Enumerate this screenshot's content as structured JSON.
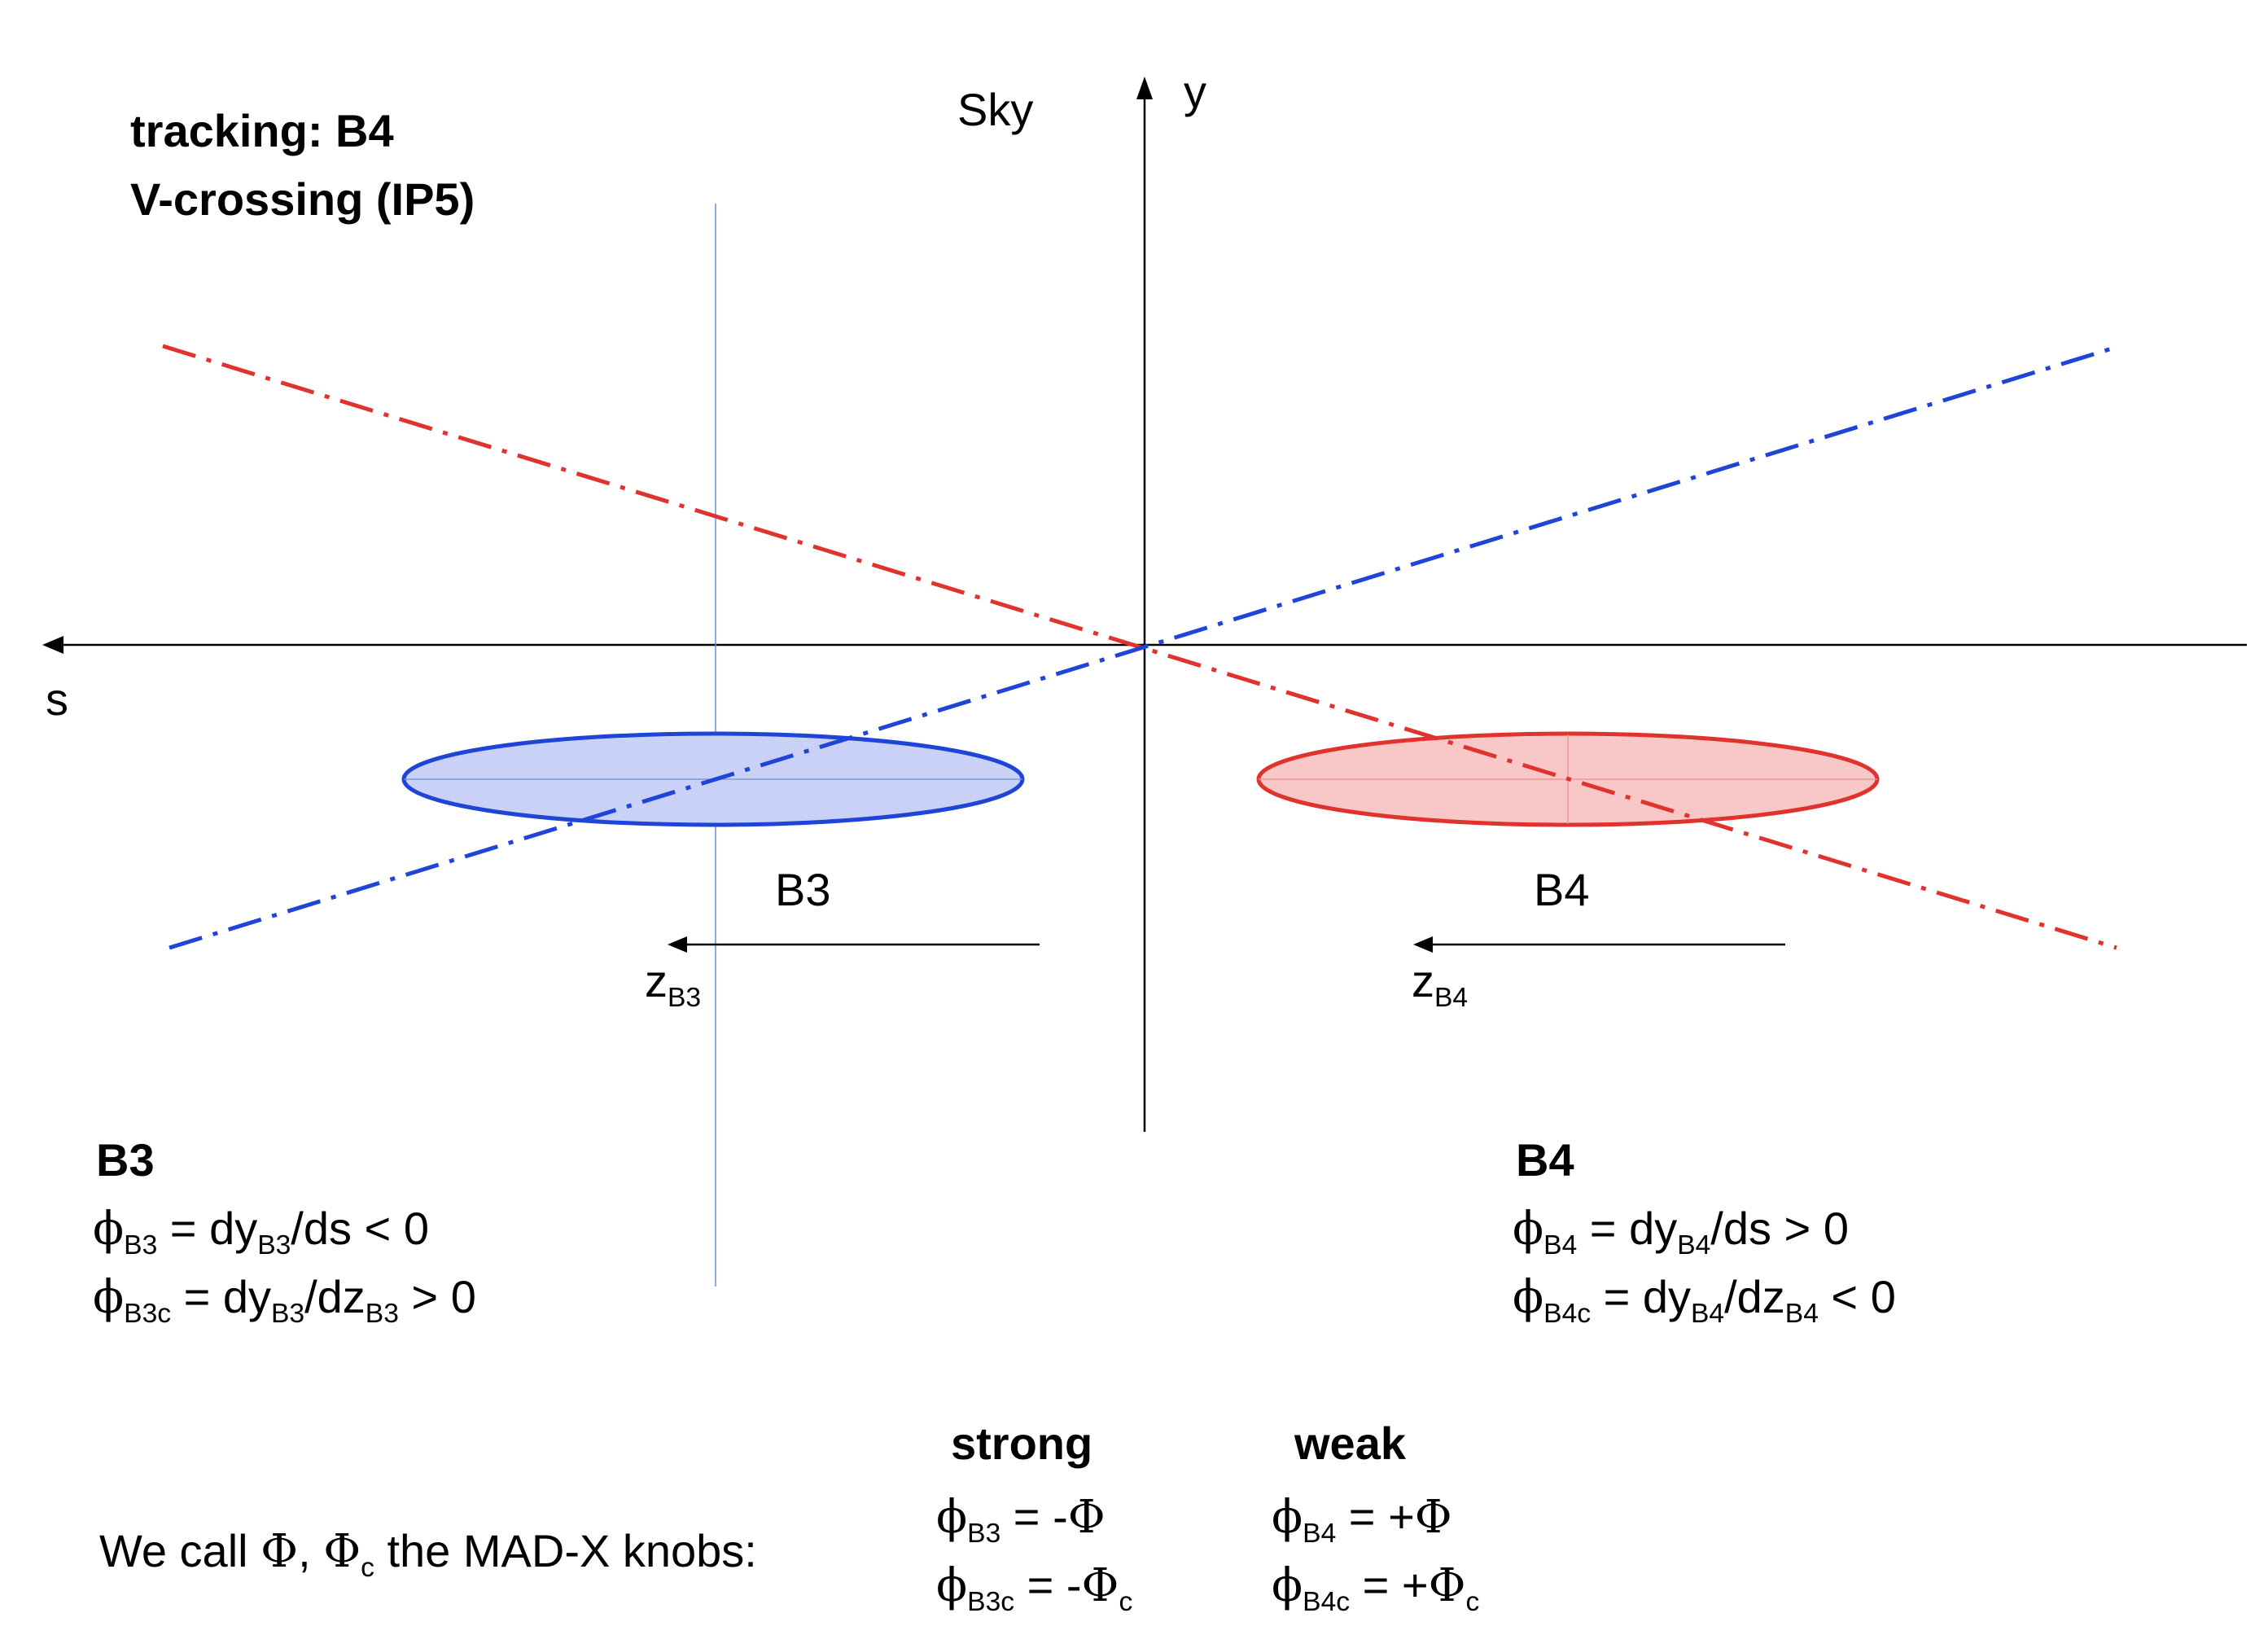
{
  "header": {
    "line1": "tracking: B4",
    "line2": "V-crossing (IP5)"
  },
  "axes": {
    "sky_label": "Sky",
    "y_label": "y",
    "s_label": "s"
  },
  "beams": {
    "b3": {
      "name": "B3",
      "color": "#1f44d8",
      "fill": "#c9d1f7",
      "z_symbol": "z",
      "z_sub": "B3"
    },
    "b4": {
      "name": "B4",
      "color": "#e0332e",
      "fill": "#f7c8c7",
      "z_symbol": "z",
      "z_sub": "B4"
    }
  },
  "b3_block": {
    "title": "B3",
    "eq1": {
      "phi": "ϕ",
      "phi_sub": "B3",
      "a": " = dy",
      "a_sub": "B3",
      "b": "/ds < 0"
    },
    "eq2": {
      "phi": "ϕ",
      "phi_sub": "B3c",
      "a": " = dy",
      "a_sub": "B3",
      "b": "/dz",
      "b_sub": "B3",
      "c": " > 0"
    }
  },
  "b4_block": {
    "title": "B4",
    "eq1": {
      "phi": "ϕ",
      "phi_sub": "B4",
      "a": " = dy",
      "a_sub": "B4",
      "b": "/ds > 0"
    },
    "eq2": {
      "phi": "ϕ",
      "phi_sub": "B4c",
      "a": " = dy",
      "a_sub": "B4",
      "b": "/dz",
      "b_sub": "B4",
      "c": "  < 0"
    }
  },
  "knobs": {
    "intro_a": "We call ",
    "Phi": "Φ",
    "comma": ", ",
    "Phi_c_sub": "c",
    "intro_b": "  the  MAD-X knobs:",
    "strong_header": "strong",
    "weak_header": "weak",
    "strong1": {
      "phi": "ϕ",
      "sub": "B3",
      "rest": " = -",
      "Phi": "Φ"
    },
    "strong2": {
      "phi": "ϕ",
      "sub": "B3c",
      "rest": " = -",
      "Phi": "Φ",
      "Phi_sub": "c"
    },
    "weak1": {
      "phi": "ϕ",
      "sub": "B4",
      "rest": " = +",
      "Phi": "Φ"
    },
    "weak2": {
      "phi": "ϕ",
      "sub": "B4c",
      "rest": " = +",
      "Phi": "Φ",
      "Phi_sub": "c"
    }
  }
}
